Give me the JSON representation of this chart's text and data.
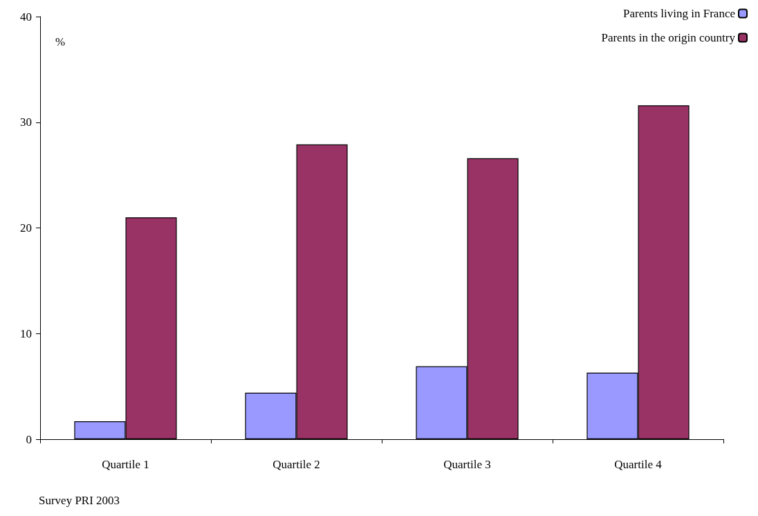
{
  "chart_data": {
    "type": "bar",
    "ylabel": "%",
    "categories": [
      "Quartile 1",
      "Quartile 2",
      "Quartile 3",
      "Quartile 4"
    ],
    "series": [
      {
        "name": "Parents living in France",
        "color": "#9999ff",
        "values": [
          1.7,
          4.4,
          6.9,
          6.3
        ]
      },
      {
        "name": "Parents in the origin country",
        "color": "#993366",
        "values": [
          21.0,
          27.9,
          26.6,
          31.6
        ]
      }
    ],
    "ylim": [
      0,
      40
    ],
    "yticks": [
      0,
      10,
      20,
      30,
      40
    ],
    "grid": false,
    "legend": "top right",
    "annotations": [
      "Survey PRI 2003"
    ]
  }
}
